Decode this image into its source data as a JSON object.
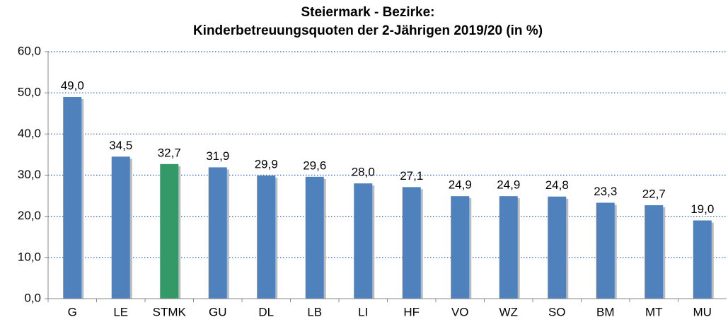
{
  "chart_data": {
    "type": "bar",
    "title": [
      "Steiermark - Bezirke:",
      "Kinderbetreuungsquoten der 2-Jährigen 2019/20 (in %)"
    ],
    "categories": [
      "G",
      "LE",
      "STMK",
      "GU",
      "DL",
      "LB",
      "LI",
      "HF",
      "VO",
      "WZ",
      "SO",
      "BM",
      "MT",
      "MU"
    ],
    "values": [
      49.0,
      34.5,
      32.7,
      31.9,
      29.9,
      29.6,
      28.0,
      27.1,
      24.9,
      24.9,
      24.8,
      23.3,
      22.7,
      19.0
    ],
    "value_labels": [
      "49,0",
      "34,5",
      "32,7",
      "31,9",
      "29,9",
      "29,6",
      "28,0",
      "27,1",
      "24,9",
      "24,9",
      "24,8",
      "23,3",
      "22,7",
      "19,0"
    ],
    "colors": [
      "#4f81bd",
      "#4f81bd",
      "#339966",
      "#4f81bd",
      "#4f81bd",
      "#4f81bd",
      "#4f81bd",
      "#4f81bd",
      "#4f81bd",
      "#4f81bd",
      "#4f81bd",
      "#4f81bd",
      "#4f81bd",
      "#4f81bd"
    ],
    "ylim": [
      0,
      60
    ],
    "yticks": [
      {
        "value": 0,
        "label": "0,0"
      },
      {
        "value": 10,
        "label": "10,0"
      },
      {
        "value": 20,
        "label": "20,0"
      },
      {
        "value": 30,
        "label": "30,0"
      },
      {
        "value": 40,
        "label": "40,0"
      },
      {
        "value": 50,
        "label": "50,0"
      },
      {
        "value": 60,
        "label": "60,0"
      }
    ],
    "grid": true
  }
}
